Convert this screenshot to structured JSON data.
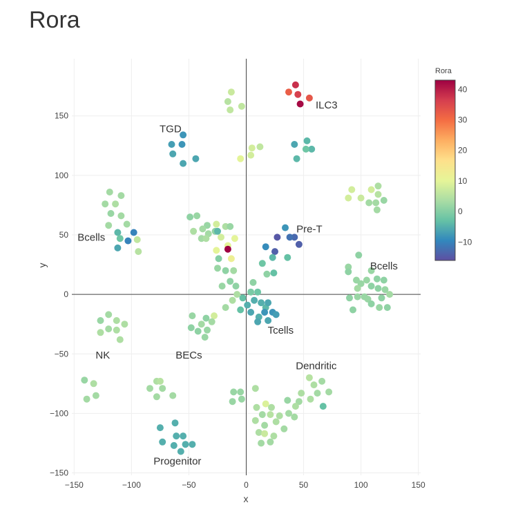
{
  "page": {
    "title": "Rora"
  },
  "chart_data": {
    "type": "scatter",
    "title": "Rora",
    "xlabel": "x",
    "ylabel": "y",
    "xlim": [
      -152,
      152
    ],
    "ylim": [
      -152,
      198
    ],
    "xticks": [
      -150,
      -100,
      -50,
      0,
      50,
      100,
      150
    ],
    "yticks": [
      -150,
      -100,
      -50,
      0,
      50,
      100,
      150
    ],
    "grid": true,
    "zero_lines": true,
    "colorbar": {
      "title": "Rora",
      "min": -16,
      "max": 43,
      "ticks": [
        40,
        30,
        20,
        10,
        0,
        -10
      ],
      "colorscale": [
        "#5e4fa2",
        "#3288bd",
        "#66c2a5",
        "#abdda4",
        "#e6f598",
        "#fee08b",
        "#fdae61",
        "#f46d43",
        "#d53e4f",
        "#9e0142"
      ]
    },
    "annotations": [
      {
        "text": "ILC3",
        "x": 70,
        "y": 159
      },
      {
        "text": "TGD",
        "x": -66,
        "y": 139
      },
      {
        "text": "Bcells",
        "x": -135,
        "y": 48
      },
      {
        "text": "Pre-T",
        "x": 55,
        "y": 55
      },
      {
        "text": "Bcells",
        "x": 120,
        "y": 24
      },
      {
        "text": "Tcells",
        "x": 30,
        "y": -30
      },
      {
        "text": "NK",
        "x": -125,
        "y": -51
      },
      {
        "text": "BECs",
        "x": -50,
        "y": -51
      },
      {
        "text": "Dendritic",
        "x": 61,
        "y": -60
      },
      {
        "text": "Progenitor",
        "x": -60,
        "y": -140
      }
    ],
    "points": [
      [
        43,
        176,
        38
      ],
      [
        37,
        170,
        32
      ],
      [
        45,
        168,
        36
      ],
      [
        55,
        165,
        33
      ],
      [
        47,
        160,
        42
      ],
      [
        -13,
        170,
        7
      ],
      [
        -16,
        162,
        5
      ],
      [
        -4,
        158,
        6
      ],
      [
        -14,
        155,
        6
      ],
      [
        -55,
        134,
        -8
      ],
      [
        -65,
        126,
        -7
      ],
      [
        -56,
        126,
        -8
      ],
      [
        -64,
        118,
        -6
      ],
      [
        -55,
        110,
        -6
      ],
      [
        -44,
        114,
        -6
      ],
      [
        5,
        123,
        8
      ],
      [
        12,
        124,
        6
      ],
      [
        4,
        117,
        8
      ],
      [
        -5,
        114,
        10
      ],
      [
        42,
        126,
        -6
      ],
      [
        53,
        129,
        -4
      ],
      [
        57,
        122,
        -4
      ],
      [
        52,
        122,
        -2
      ],
      [
        44,
        114,
        -4
      ],
      [
        -119,
        86,
        3
      ],
      [
        -109,
        83,
        3
      ],
      [
        -123,
        76,
        3
      ],
      [
        -114,
        76,
        4
      ],
      [
        -118,
        68,
        2
      ],
      [
        -109,
        66,
        3
      ],
      [
        -120,
        58,
        3
      ],
      [
        -104,
        59,
        3
      ],
      [
        -112,
        52,
        -4
      ],
      [
        -98,
        52,
        -10
      ],
      [
        -110,
        47,
        -2
      ],
      [
        -103,
        45,
        -10
      ],
      [
        -95,
        46,
        6
      ],
      [
        -112,
        39,
        -6
      ],
      [
        -94,
        36,
        5
      ],
      [
        -49,
        65,
        1
      ],
      [
        -43,
        66,
        2
      ],
      [
        -34,
        58,
        2
      ],
      [
        -18,
        57,
        4
      ],
      [
        -46,
        53,
        4
      ],
      [
        -38,
        55,
        3
      ],
      [
        -26,
        59,
        8
      ],
      [
        -27,
        53,
        1
      ],
      [
        -33,
        51,
        3
      ],
      [
        -22,
        48,
        8
      ],
      [
        -25,
        53,
        -4
      ],
      [
        -14,
        57,
        2
      ],
      [
        -39,
        47,
        3
      ],
      [
        -35,
        47,
        4
      ],
      [
        -10,
        47,
        10
      ],
      [
        -16,
        41,
        10
      ],
      [
        -26,
        37,
        10
      ],
      [
        -16,
        38,
        43
      ],
      [
        -13,
        30,
        12
      ],
      [
        -24,
        30,
        0
      ],
      [
        -25,
        22,
        2
      ],
      [
        -18,
        20,
        1
      ],
      [
        -11,
        20,
        3
      ],
      [
        -14,
        11,
        1
      ],
      [
        -21,
        7,
        2
      ],
      [
        -9,
        7,
        1
      ],
      [
        34,
        56,
        -8
      ],
      [
        27,
        48,
        -15
      ],
      [
        42,
        48,
        -13
      ],
      [
        38,
        48,
        -12
      ],
      [
        17,
        40,
        -9
      ],
      [
        25,
        36,
        -14
      ],
      [
        46,
        42,
        -14
      ],
      [
        23,
        31,
        -4
      ],
      [
        36,
        31,
        -3
      ],
      [
        14,
        26,
        -2
      ],
      [
        18,
        17,
        1
      ],
      [
        24,
        18,
        -3
      ],
      [
        6,
        10,
        1
      ],
      [
        10,
        2,
        -2
      ],
      [
        4,
        2,
        -1
      ],
      [
        -3,
        -3,
        -3
      ],
      [
        7,
        -5,
        -5
      ],
      [
        1,
        -9,
        -5
      ],
      [
        13,
        -7,
        -5
      ],
      [
        17,
        -11,
        -4
      ],
      [
        19,
        -7,
        -6
      ],
      [
        -5,
        -13,
        -3
      ],
      [
        4,
        -15,
        -6
      ],
      [
        16,
        -15,
        -8
      ],
      [
        23,
        -15,
        -8
      ],
      [
        11,
        -19,
        -5
      ],
      [
        26,
        -17,
        -7
      ],
      [
        10,
        -23,
        -6
      ],
      [
        19,
        -22,
        -6
      ],
      [
        -18,
        -11,
        3
      ],
      [
        -12,
        -5,
        4
      ],
      [
        -8,
        0,
        4
      ],
      [
        -28,
        -18,
        8
      ],
      [
        -35,
        -20,
        1
      ],
      [
        -30,
        -23,
        3
      ],
      [
        -39,
        -25,
        3
      ],
      [
        -47,
        -18,
        2
      ],
      [
        -48,
        -28,
        1
      ],
      [
        -42,
        -31,
        1
      ],
      [
        -34,
        -30,
        2
      ],
      [
        -36,
        -36,
        2
      ],
      [
        98,
        33,
        1
      ],
      [
        109,
        20,
        2
      ],
      [
        89,
        23,
        2
      ],
      [
        114,
        13,
        1
      ],
      [
        105,
        12,
        2
      ],
      [
        96,
        12,
        2
      ],
      [
        120,
        12,
        1
      ],
      [
        89,
        19,
        1
      ],
      [
        100,
        9,
        2
      ],
      [
        115,
        5,
        1
      ],
      [
        109,
        7,
        1
      ],
      [
        121,
        4,
        2
      ],
      [
        97,
        5,
        3
      ],
      [
        125,
        0,
        3
      ],
      [
        90,
        -3,
        1
      ],
      [
        106,
        -4,
        2
      ],
      [
        118,
        -3,
        1
      ],
      [
        97,
        -2,
        2
      ],
      [
        103,
        -2,
        2
      ],
      [
        109,
        -8,
        1
      ],
      [
        116,
        -11,
        2
      ],
      [
        123,
        -11,
        1
      ],
      [
        93,
        -13,
        1
      ],
      [
        92,
        88,
        8
      ],
      [
        109,
        88,
        8
      ],
      [
        115,
        91,
        4
      ],
      [
        115,
        84,
        5
      ],
      [
        100,
        81,
        7
      ],
      [
        89,
        81,
        8
      ],
      [
        120,
        79,
        2
      ],
      [
        107,
        77,
        3
      ],
      [
        113,
        77,
        3
      ],
      [
        114,
        71,
        3
      ],
      [
        -120,
        -17,
        3
      ],
      [
        -127,
        -22,
        2
      ],
      [
        -113,
        -22,
        4
      ],
      [
        -120,
        -29,
        3
      ],
      [
        -106,
        -25,
        4
      ],
      [
        -127,
        -32,
        4
      ],
      [
        -113,
        -30,
        4
      ],
      [
        -110,
        -38,
        4
      ],
      [
        -141,
        -72,
        2
      ],
      [
        -133,
        -75,
        4
      ],
      [
        -131,
        -85,
        3
      ],
      [
        -139,
        -88,
        3
      ],
      [
        -78,
        -73,
        4
      ],
      [
        -75,
        -73,
        5
      ],
      [
        -73,
        -79,
        3
      ],
      [
        -84,
        -79,
        3
      ],
      [
        -78,
        -86,
        3
      ],
      [
        -64,
        -85,
        3
      ],
      [
        55,
        -70,
        5
      ],
      [
        59,
        -76,
        4
      ],
      [
        66,
        -73,
        3
      ],
      [
        72,
        -82,
        3
      ],
      [
        48,
        -83,
        4
      ],
      [
        62,
        -83,
        3
      ],
      [
        56,
        -88,
        4
      ],
      [
        46,
        -90,
        3
      ],
      [
        36,
        -89,
        2
      ],
      [
        43,
        -94,
        4
      ],
      [
        67,
        -94,
        -3
      ],
      [
        8,
        -79,
        4
      ],
      [
        -11,
        -82,
        2
      ],
      [
        -5,
        -82,
        2
      ],
      [
        -4,
        -88,
        2
      ],
      [
        -12,
        -90,
        2
      ],
      [
        17,
        -92,
        9
      ],
      [
        9,
        -95,
        4
      ],
      [
        22,
        -95,
        4
      ],
      [
        14,
        -101,
        3
      ],
      [
        21,
        -101,
        5
      ],
      [
        29,
        -102,
        4
      ],
      [
        37,
        -100,
        3
      ],
      [
        42,
        -103,
        3
      ],
      [
        26,
        -107,
        4
      ],
      [
        8,
        -106,
        4
      ],
      [
        16,
        -110,
        3
      ],
      [
        11,
        -116,
        4
      ],
      [
        16,
        -117,
        7
      ],
      [
        24,
        -119,
        4
      ],
      [
        21,
        -124,
        3
      ],
      [
        33,
        -113,
        3
      ],
      [
        13,
        -125,
        3
      ],
      [
        -75,
        -112,
        -5
      ],
      [
        -62,
        -108,
        -5
      ],
      [
        -61,
        -119,
        -5
      ],
      [
        -55,
        -119,
        -5
      ],
      [
        -73,
        -124,
        -5
      ],
      [
        -63,
        -127,
        -5
      ],
      [
        -53,
        -126,
        -5
      ],
      [
        -47,
        -126,
        -5
      ],
      [
        -57,
        -132,
        -5
      ]
    ]
  }
}
